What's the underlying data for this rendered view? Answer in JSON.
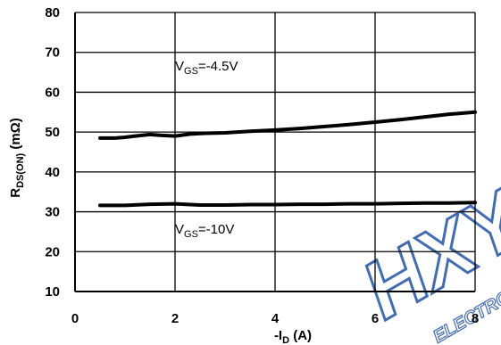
{
  "chart_data": {
    "type": "line",
    "xlabel": "-I",
    "xlabel_sub": "D",
    "xlabel_unit": " (A)",
    "ylabel": "R",
    "ylabel_sub": "DS(ON)",
    "ylabel_unit": " (mΩ)",
    "xlim": [
      0,
      8
    ],
    "ylim": [
      10,
      80
    ],
    "xticks": [
      0,
      2,
      4,
      6,
      8
    ],
    "yticks": [
      10,
      20,
      30,
      40,
      50,
      60,
      70,
      80
    ],
    "grid": true,
    "series": [
      {
        "name": "VGS=-4.5V",
        "color": "#000000",
        "x": [
          0.5,
          0.8,
          1.0,
          1.2,
          1.5,
          1.7,
          2.0,
          2.3,
          2.6,
          3.0,
          3.5,
          4.0,
          4.5,
          5.0,
          5.5,
          6.0,
          6.5,
          7.0,
          7.5,
          8.0
        ],
        "y": [
          48.5,
          48.5,
          48.7,
          49.0,
          49.4,
          49.2,
          49.0,
          49.5,
          49.7,
          49.8,
          50.2,
          50.5,
          50.9,
          51.4,
          51.9,
          52.5,
          53.1,
          53.8,
          54.5,
          55.0
        ]
      },
      {
        "name": "VGS=-10V",
        "color": "#000000",
        "x": [
          0.5,
          1.0,
          1.5,
          2.0,
          2.5,
          3.0,
          3.5,
          4.0,
          4.5,
          5.0,
          5.5,
          6.0,
          6.5,
          7.0,
          7.5,
          8.0
        ],
        "y": [
          31.6,
          31.6,
          31.9,
          32.0,
          31.7,
          31.7,
          31.8,
          31.8,
          31.9,
          31.9,
          32.0,
          32.0,
          32.1,
          32.2,
          32.2,
          32.3
        ]
      }
    ],
    "annotations": [
      {
        "main": "V",
        "sub": "GS",
        "rest": "=-4.5V",
        "x": 2.0,
        "y": 65.5
      },
      {
        "main": "V",
        "sub": "GS",
        "rest": "=-10V",
        "x": 2.0,
        "y": 24.5
      }
    ]
  },
  "watermark": {
    "text": "HXY",
    "subtext": "ELECTRONICS",
    "color": "#2f5ea8"
  }
}
